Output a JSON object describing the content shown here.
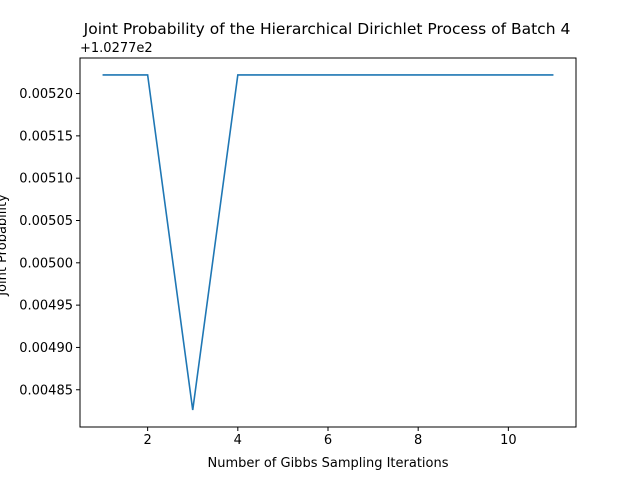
{
  "chart_data": {
    "type": "line",
    "title": "Joint Probability of the Hierarchical Dirichlet Process of Batch 4",
    "xlabel": "Number of Gibbs Sampling Iterations",
    "ylabel": "Joint Probability",
    "y_offset_label": "+1.0277e2",
    "x": [
      1,
      2,
      3,
      4,
      5,
      6,
      7,
      8,
      9,
      10,
      11
    ],
    "series": [
      {
        "color": "#1f77b4",
        "values": [
          0.005222,
          0.005222,
          0.004826,
          0.005222,
          0.005222,
          0.005222,
          0.005222,
          0.005222,
          0.005222,
          0.005222,
          0.005222
        ]
      }
    ],
    "xlim": [
      0.5,
      11.5
    ],
    "ylim": [
      0.004806,
      0.005242
    ],
    "x_ticks": [
      2,
      4,
      6,
      8,
      10
    ],
    "x_tick_labels": [
      "2",
      "4",
      "6",
      "8",
      "10"
    ],
    "y_ticks": [
      0.00485,
      0.0049,
      0.00495,
      0.005,
      0.00505,
      0.0051,
      0.00515,
      0.0052
    ],
    "y_tick_labels": [
      "0.00485",
      "0.00490",
      "0.00495",
      "0.00500",
      "0.00505",
      "0.00510",
      "0.00515",
      "0.00520"
    ],
    "grid": false,
    "legend": "none"
  }
}
